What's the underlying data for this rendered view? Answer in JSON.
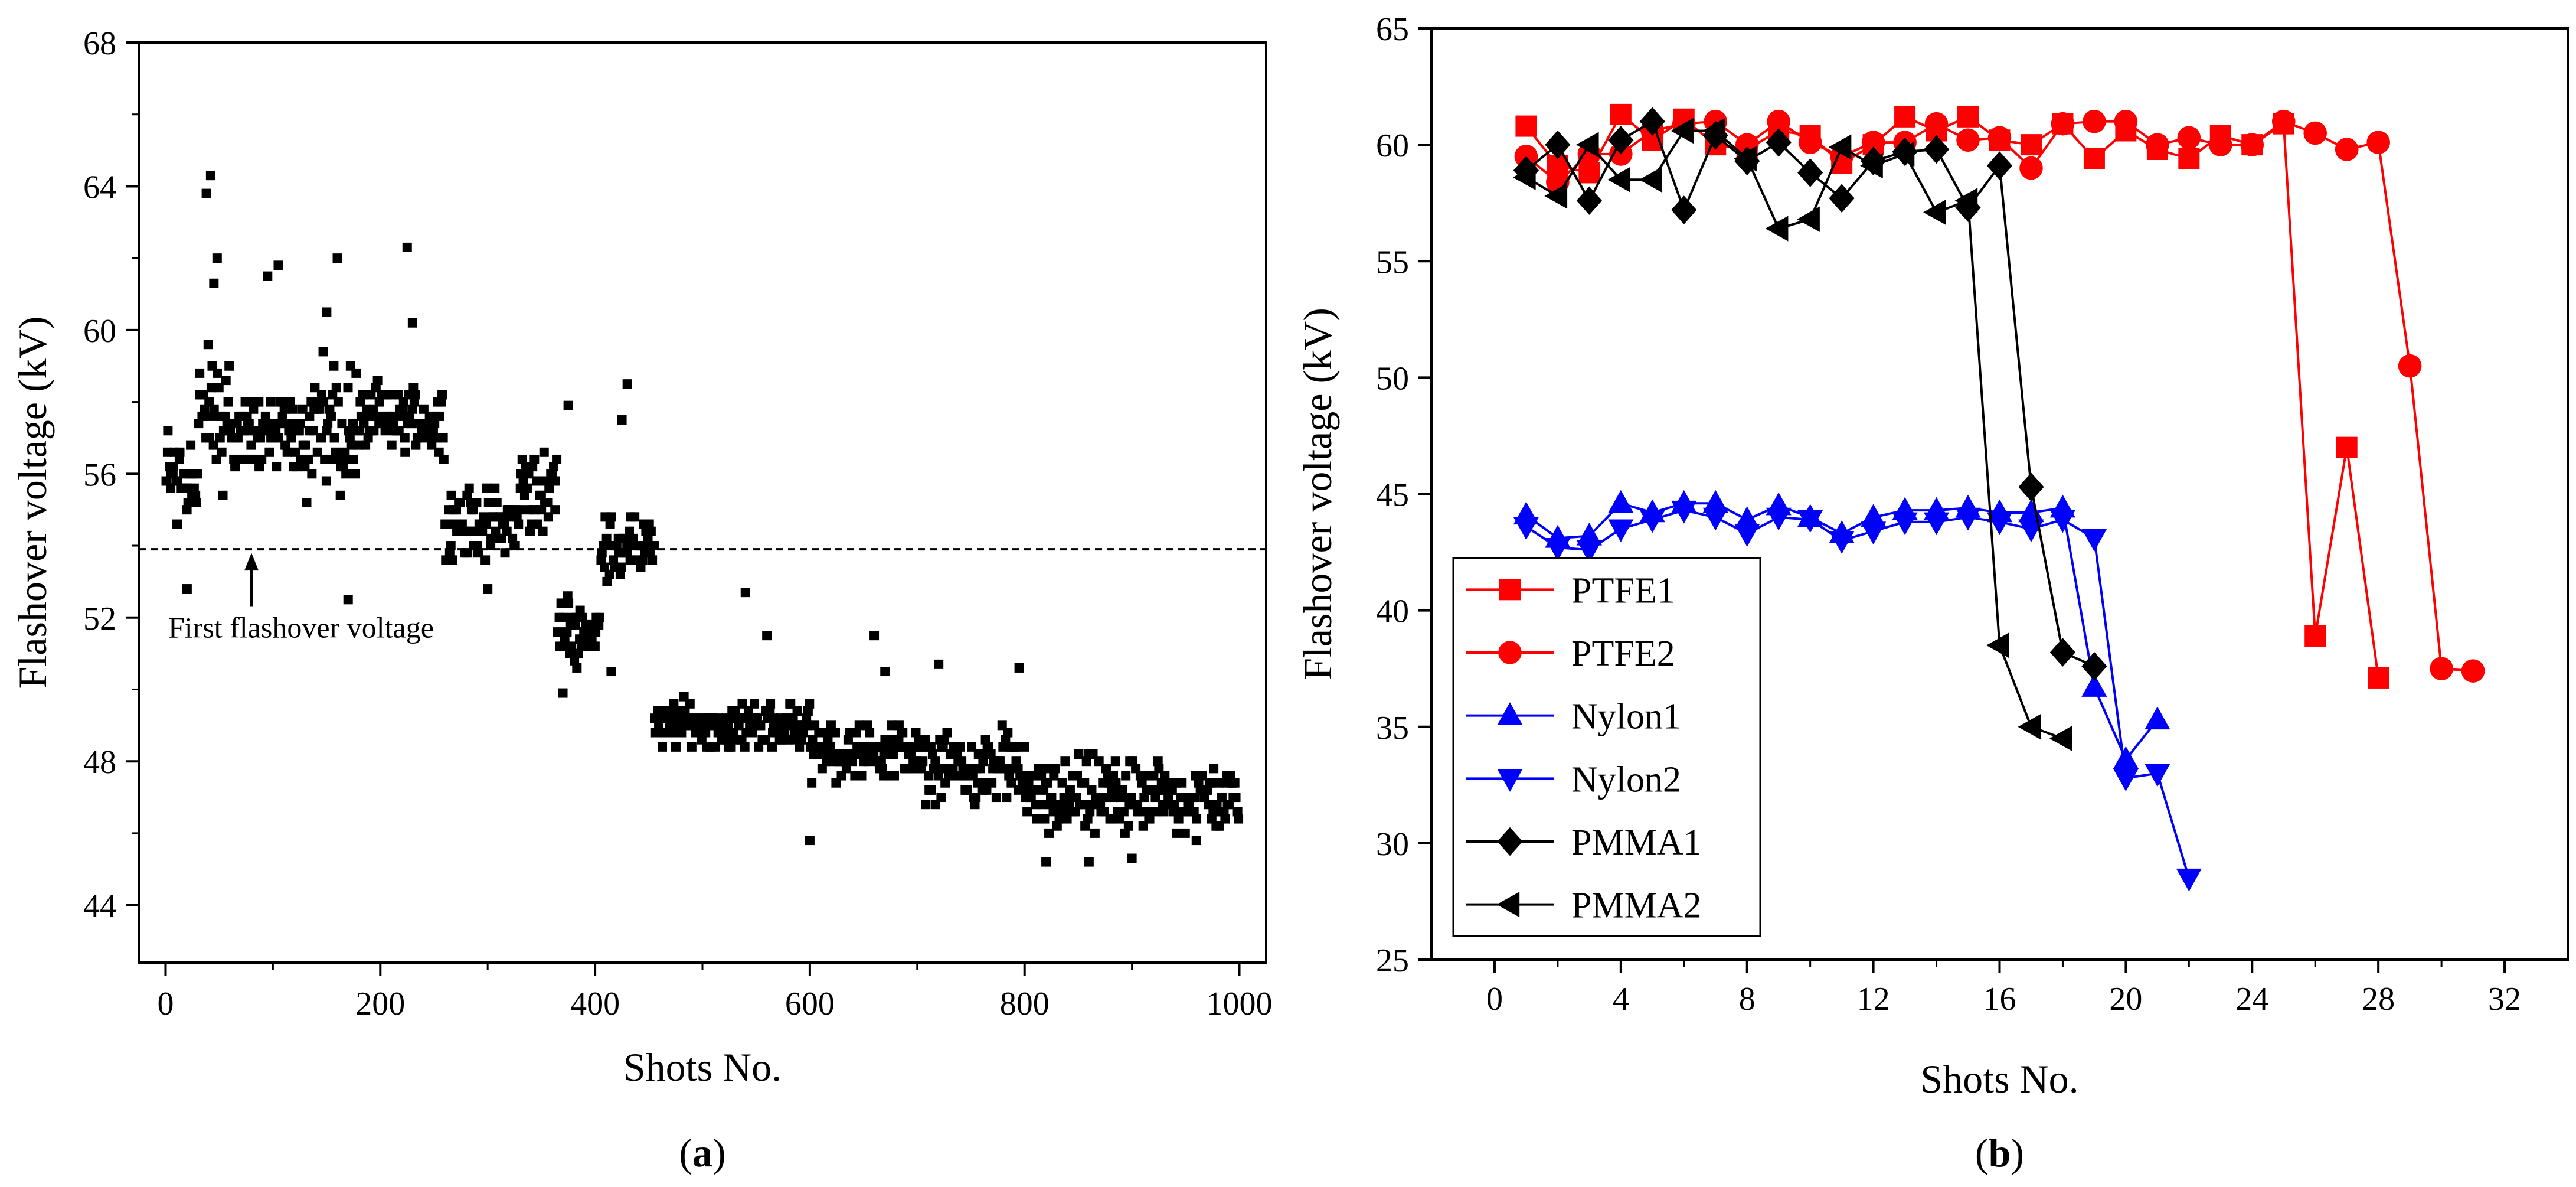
{
  "panel_labels": {
    "a": "(a)",
    "b": "(b)",
    "a_letter": "a",
    "b_letter": "b"
  },
  "chart_data": [
    {
      "type": "scatter",
      "title": "",
      "xlabel": "Shots No.",
      "ylabel": "Flashover voltage (kV)",
      "xlim": [
        -25,
        1025
      ],
      "ylim": [
        42.4,
        68
      ],
      "xticks": [
        "0",
        "200",
        "400",
        "600",
        "800",
        "1000"
      ],
      "yticks": [
        "44",
        "48",
        "52",
        "56",
        "60",
        "64",
        "68"
      ],
      "grid": false,
      "reference_line": {
        "y": 53.9,
        "style": "dashed"
      },
      "annotation": {
        "text": "First flashover voltage",
        "arrow_to": [
          80,
          53.9
        ],
        "arrow_from": [
          80,
          52.3
        ]
      },
      "marker": "square",
      "color": "#000000",
      "segments": [
        {
          "x_range": [
            0,
            30
          ],
          "y_center": 56.0,
          "y_spread": 1.5,
          "count": 30
        },
        {
          "x_range": [
            30,
            60
          ],
          "y_center": 57.5,
          "y_spread": 2.0,
          "count": 30
        },
        {
          "x_range": [
            60,
            130
          ],
          "y_center": 57.2,
          "y_spread": 1.0,
          "count": 70
        },
        {
          "x_range": [
            130,
            180
          ],
          "y_center": 57.3,
          "y_spread": 1.8,
          "count": 50
        },
        {
          "x_range": [
            180,
            260
          ],
          "y_center": 57.5,
          "y_spread": 0.9,
          "count": 80
        },
        {
          "x_range": [
            260,
            330
          ],
          "y_center": 54.6,
          "y_spread": 0.9,
          "count": 70
        },
        {
          "x_range": [
            330,
            365
          ],
          "y_center": 55.6,
          "y_spread": 1.1,
          "count": 35
        },
        {
          "x_range": [
            365,
            405
          ],
          "y_center": 51.6,
          "y_spread": 0.9,
          "count": 40
        },
        {
          "x_range": [
            405,
            455
          ],
          "y_center": 54.0,
          "y_spread": 0.8,
          "count": 50
        },
        {
          "x_range": [
            455,
            600
          ],
          "y_center": 49.0,
          "y_spread": 0.6,
          "count": 145
        },
        {
          "x_range": [
            600,
            700
          ],
          "y_center": 48.3,
          "y_spread": 0.7,
          "count": 100
        },
        {
          "x_range": [
            700,
            800
          ],
          "y_center": 47.8,
          "y_spread": 0.9,
          "count": 100
        },
        {
          "x_range": [
            800,
            900
          ],
          "y_center": 47.0,
          "y_spread": 1.0,
          "count": 100
        },
        {
          "x_range": [
            900,
            1000
          ],
          "y_center": 47.0,
          "y_spread": 0.8,
          "count": 100
        }
      ],
      "outliers": [
        {
          "x": 42,
          "y": 64.3
        },
        {
          "x": 38,
          "y": 63.8
        },
        {
          "x": 48,
          "y": 62.0
        },
        {
          "x": 45,
          "y": 61.3
        },
        {
          "x": 95,
          "y": 61.5
        },
        {
          "x": 105,
          "y": 61.8
        },
        {
          "x": 160,
          "y": 62.0
        },
        {
          "x": 225,
          "y": 62.3
        },
        {
          "x": 150,
          "y": 60.5
        },
        {
          "x": 230,
          "y": 60.2
        },
        {
          "x": 20,
          "y": 52.8
        },
        {
          "x": 170,
          "y": 52.5
        },
        {
          "x": 300,
          "y": 52.8
        },
        {
          "x": 375,
          "y": 57.9
        },
        {
          "x": 430,
          "y": 58.5
        },
        {
          "x": 425,
          "y": 57.5
        },
        {
          "x": 370,
          "y": 49.9
        },
        {
          "x": 415,
          "y": 50.5
        },
        {
          "x": 540,
          "y": 52.7
        },
        {
          "x": 560,
          "y": 51.5
        },
        {
          "x": 600,
          "y": 45.8
        },
        {
          "x": 660,
          "y": 51.5
        },
        {
          "x": 670,
          "y": 50.5
        },
        {
          "x": 720,
          "y": 50.7
        },
        {
          "x": 795,
          "y": 50.6
        },
        {
          "x": 820,
          "y": 45.2
        },
        {
          "x": 860,
          "y": 45.2
        },
        {
          "x": 900,
          "y": 45.3
        },
        {
          "x": 960,
          "y": 45.8
        }
      ]
    },
    {
      "type": "line",
      "title": "",
      "xlabel": "Shots No.",
      "ylabel": "Flashover voltage (kV)",
      "xlim": [
        -2,
        34
      ],
      "ylim": [
        25,
        65
      ],
      "xticks": [
        "0",
        "4",
        "8",
        "12",
        "16",
        "20",
        "24",
        "28",
        "32"
      ],
      "yticks": [
        "25",
        "30",
        "35",
        "40",
        "45",
        "50",
        "55",
        "60",
        "65"
      ],
      "grid": false,
      "legend_position": "bottom-left",
      "series": [
        {
          "name": "PTFE1",
          "color": "#ff0000",
          "marker": "square",
          "x": [
            1,
            2,
            3,
            4,
            5,
            6,
            7,
            8,
            9,
            10,
            11,
            12,
            13,
            14,
            15,
            16,
            17,
            18,
            19,
            20,
            21,
            22,
            23,
            24,
            25,
            26,
            27,
            28
          ],
          "y": [
            60.8,
            59.1,
            58.8,
            61.3,
            60.2,
            61.1,
            60.0,
            59.8,
            60.6,
            60.4,
            59.2,
            60.0,
            61.2,
            60.6,
            61.2,
            60.2,
            60.0,
            60.9,
            59.4,
            60.6,
            59.8,
            59.4,
            60.4,
            60.0,
            60.9,
            38.9,
            47.0,
            37.1
          ]
        },
        {
          "name": "PTFE2",
          "color": "#ff0000",
          "marker": "circle",
          "x": [
            1,
            2,
            3,
            4,
            5,
            6,
            7,
            8,
            9,
            10,
            11,
            12,
            13,
            14,
            15,
            16,
            17,
            18,
            19,
            20,
            21,
            22,
            23,
            24,
            25,
            26,
            27,
            28,
            29,
            30,
            31
          ],
          "y": [
            59.5,
            58.4,
            59.6,
            59.6,
            60.6,
            60.9,
            61.0,
            60.0,
            61.0,
            60.1,
            59.5,
            60.1,
            60.1,
            60.9,
            60.2,
            60.3,
            59.0,
            60.9,
            61.0,
            61.0,
            60.0,
            60.3,
            60.0,
            60.0,
            61.0,
            60.5,
            59.8,
            60.1,
            50.5,
            37.5,
            37.4
          ]
        },
        {
          "name": "Nylon1",
          "color": "#0000ff",
          "marker": "triangle-up",
          "x": [
            1,
            2,
            3,
            4,
            5,
            6,
            7,
            8,
            9,
            10,
            11,
            12,
            13,
            14,
            15,
            16,
            17,
            18,
            19,
            20,
            21
          ],
          "y": [
            44.1,
            43.1,
            43.2,
            44.6,
            44.2,
            44.6,
            44.6,
            43.9,
            44.5,
            44.0,
            43.3,
            44.0,
            44.3,
            44.3,
            44.4,
            44.2,
            44.2,
            44.4,
            36.7,
            33.6,
            35.3
          ]
        },
        {
          "name": "Nylon2",
          "color": "#0000ff",
          "marker": "triangle-down",
          "x": [
            1,
            2,
            3,
            4,
            5,
            6,
            7,
            8,
            9,
            10,
            11,
            12,
            13,
            14,
            15,
            16,
            17,
            18,
            19,
            20,
            21,
            22
          ],
          "y": [
            43.6,
            42.7,
            42.6,
            43.5,
            43.9,
            44.3,
            44.0,
            43.3,
            44.0,
            43.9,
            43.0,
            43.4,
            43.8,
            43.8,
            44.0,
            43.8,
            43.5,
            43.9,
            43.1,
            32.8,
            33.0,
            28.5
          ]
        },
        {
          "name": "PMMA1",
          "color": "#000000",
          "marker": "diamond",
          "x": [
            1,
            2,
            3,
            4,
            5,
            6,
            7,
            8,
            9,
            10,
            11,
            12,
            13,
            14,
            15,
            16,
            17,
            18,
            19
          ],
          "y": [
            58.9,
            60.0,
            57.6,
            60.2,
            61.0,
            57.2,
            60.4,
            59.3,
            60.1,
            58.8,
            57.7,
            59.3,
            59.7,
            59.8,
            57.3,
            59.1,
            45.3,
            38.2,
            37.6
          ]
        },
        {
          "name": "PMMA2",
          "color": "#000000",
          "marker": "triangle-left",
          "x": [
            1,
            2,
            3,
            4,
            5,
            6,
            7,
            8,
            9,
            10,
            11,
            12,
            13,
            14,
            15,
            16,
            17,
            18
          ],
          "y": [
            58.6,
            57.8,
            60.0,
            58.5,
            58.5,
            60.6,
            60.6,
            59.4,
            56.4,
            56.8,
            59.9,
            59.1,
            59.6,
            57.1,
            57.6,
            38.5,
            35.0,
            34.5
          ]
        }
      ]
    }
  ]
}
